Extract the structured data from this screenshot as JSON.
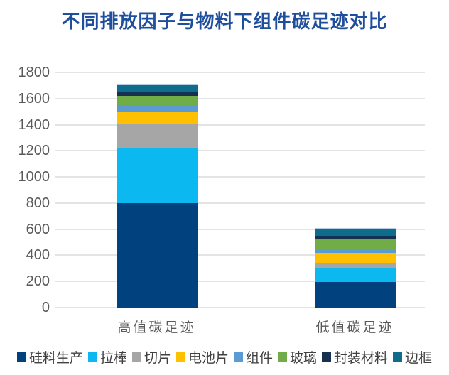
{
  "title": "不同排放因子与物料下组件碳足迹对比",
  "colors": {
    "title_text": "#1F4E9C",
    "axis_text": "#595959",
    "legend_text": "#404040",
    "gridline": "#E4E4E4",
    "background": "#FFFFFF",
    "bar_border": "#91AFD2"
  },
  "chart_data": {
    "type": "bar",
    "stacked": true,
    "title": "不同排放因子与物料下组件碳足迹对比",
    "categories": [
      "高值碳足迹",
      "低值碳足迹"
    ],
    "series": [
      {
        "name": "硅料生产",
        "color": "#01417E",
        "values": [
          800,
          195
        ]
      },
      {
        "name": "拉棒",
        "color": "#0BB8EF",
        "values": [
          425,
          107
        ]
      },
      {
        "name": "切片",
        "color": "#A6A6A6",
        "values": [
          185,
          33
        ]
      },
      {
        "name": "电池片",
        "color": "#FFC000",
        "values": [
          90,
          82
        ]
      },
      {
        "name": "组件",
        "color": "#5B9BD5",
        "values": [
          50,
          36
        ]
      },
      {
        "name": "玻璃",
        "color": "#70AD47",
        "values": [
          70,
          69
        ]
      },
      {
        "name": "封装材料",
        "color": "#16304F",
        "values": [
          30,
          25
        ]
      },
      {
        "name": "边框",
        "color": "#0E6D8C",
        "values": [
          58,
          55
        ]
      }
    ],
    "totals": [
      1708,
      602
    ],
    "xlabel": "",
    "ylabel": "",
    "ylim": [
      0,
      1800
    ],
    "ytick_step": 200,
    "yticks": [
      0,
      200,
      400,
      600,
      800,
      1000,
      1200,
      1400,
      1600,
      1800
    ],
    "grid": true,
    "legend_position": "bottom"
  }
}
